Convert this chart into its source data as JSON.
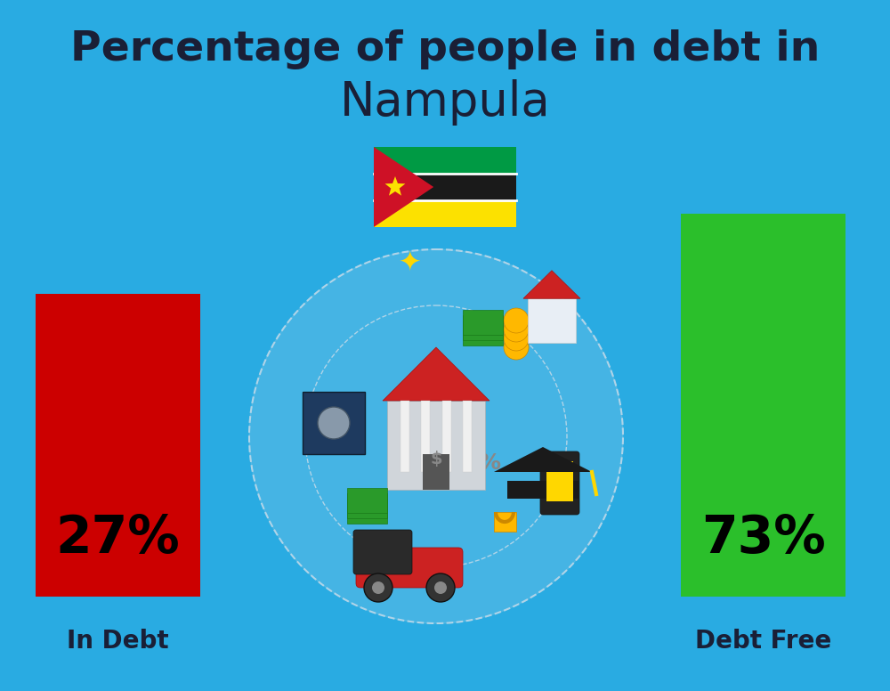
{
  "title_line1": "Percentage of people in debt in",
  "title_line2": "Nampula",
  "bg_color": "#29ABE2",
  "bar1_label": "In Debt",
  "bar1_pct": "27%",
  "bar1_color": "#CC0000",
  "bar2_label": "Debt Free",
  "bar2_pct": "73%",
  "bar2_color": "#2BBF2B",
  "text_color": "#1a1f36",
  "label_fontsize": 20,
  "pct_fontsize": 42,
  "title1_fontsize": 34,
  "title2_fontsize": 38
}
